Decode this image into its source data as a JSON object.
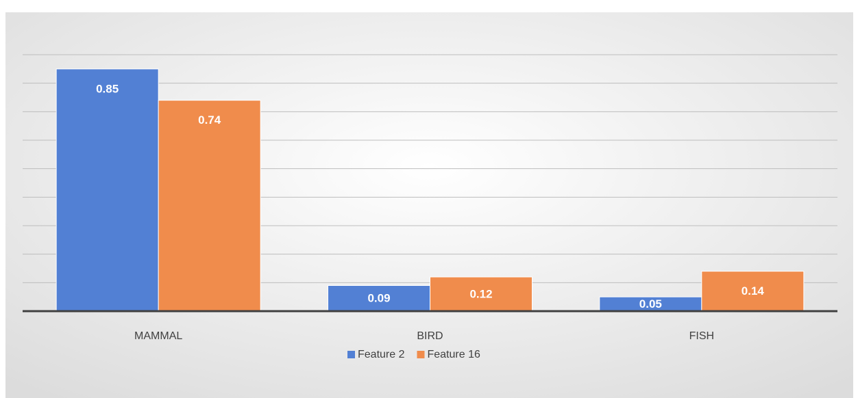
{
  "chart_data": {
    "type": "bar",
    "categories": [
      "MAMMAL",
      "BIRD",
      "FISH"
    ],
    "series": [
      {
        "name": "Feature 2",
        "color": "#5280d4",
        "values": [
          0.85,
          0.09,
          0.05
        ]
      },
      {
        "name": "Feature 16",
        "color": "#f08c4c",
        "values": [
          0.74,
          0.12,
          0.14
        ]
      }
    ],
    "ylim": [
      0,
      0.9
    ],
    "yticks": [
      0,
      0.1,
      0.2,
      0.3,
      0.4,
      0.5,
      0.6,
      0.7,
      0.8,
      0.9
    ],
    "grid": true,
    "legend": "bottom"
  }
}
